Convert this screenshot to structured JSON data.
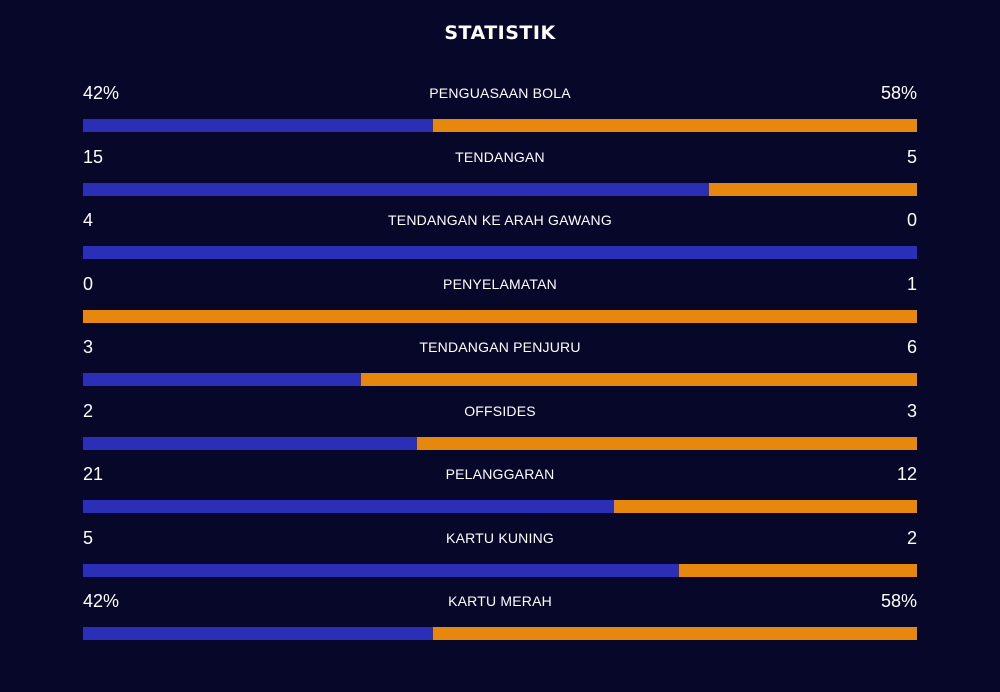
{
  "title": "STATISTIK",
  "colors": {
    "background": "#07072a",
    "left_team": "#2b2fb8",
    "right_team": "#e8870e"
  },
  "stats": [
    {
      "label": "PENGUASAAN BOLA",
      "left": "42%",
      "right": "58%",
      "left_share": 0.42
    },
    {
      "label": "TENDANGAN",
      "left": "15",
      "right": "5",
      "left_share": 0.75
    },
    {
      "label": "TENDANGAN KE ARAH GAWANG",
      "left": "4",
      "right": "0",
      "left_share": 1.0
    },
    {
      "label": "PENYELAMATAN",
      "left": "0",
      "right": "1",
      "left_share": 0.0
    },
    {
      "label": "TENDANGAN PENJURU",
      "left": "3",
      "right": "6",
      "left_share": 0.3333
    },
    {
      "label": "OFFSIDES",
      "left": "2",
      "right": "3",
      "left_share": 0.4
    },
    {
      "label": "PELANGGARAN",
      "left": "21",
      "right": "12",
      "left_share": 0.6364
    },
    {
      "label": "KARTU KUNING",
      "left": "5",
      "right": "2",
      "left_share": 0.7143
    },
    {
      "label": "KARTU MERAH",
      "left": "42%",
      "right": "58%",
      "left_share": 0.42
    }
  ]
}
